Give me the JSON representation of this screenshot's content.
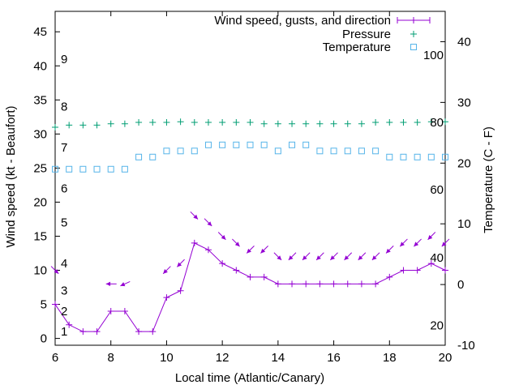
{
  "colors": {
    "wind": "#9400d3",
    "pressure": "#009e73",
    "temperature": "#56b4e9"
  },
  "chart_data": {
    "type": "line",
    "xlabel": "Local time (Atlantic/Canary)",
    "ylabel": "Wind speed (kt - Beaufort)",
    "y2label": "Temperature (C - F)",
    "xlim": [
      6,
      20
    ],
    "ylim": [
      -1,
      48
    ],
    "y2lim": [
      -10,
      45
    ],
    "xticks": [
      "6",
      "8",
      "10",
      "12",
      "14",
      "16",
      "18",
      "20"
    ],
    "yticks": [
      "0",
      "5",
      "10",
      "15",
      "20",
      "25",
      "30",
      "35",
      "40",
      "45"
    ],
    "y2ticks": [
      "-10",
      "0",
      "10",
      "20",
      "30",
      "40"
    ],
    "beaufort": [
      {
        "label": "1",
        "y": 1
      },
      {
        "label": "2",
        "y": 4
      },
      {
        "label": "3",
        "y": 7
      },
      {
        "label": "4",
        "y": 11
      },
      {
        "label": "5",
        "y": 17
      },
      {
        "label": "6",
        "y": 22
      },
      {
        "label": "7",
        "y": 28
      },
      {
        "label": "8",
        "y": 34
      },
      {
        "label": "9",
        "y": 41
      }
    ],
    "fahrenheit": [
      {
        "label": "20",
        "c": -6.7
      },
      {
        "label": "40",
        "c": 4.4
      },
      {
        "label": "60",
        "c": 15.6
      },
      {
        "label": "80",
        "c": 26.7
      },
      {
        "label": "100",
        "c": 37.8
      }
    ],
    "legend": [
      "Wind speed, gusts, and direction",
      "Pressure",
      "Temperature"
    ],
    "legend_position": "top-right",
    "series": [
      {
        "name": "Wind speed, gusts, and direction",
        "x": [
          6,
          6.5,
          7,
          7.5,
          8,
          8.5,
          9,
          9.5,
          10,
          10.5,
          11,
          11.5,
          12,
          12.5,
          13,
          13.5,
          14,
          14.5,
          15,
          15.5,
          16,
          16.5,
          17,
          17.5,
          18,
          18.5,
          19,
          19.5,
          20
        ],
        "values": [
          5,
          2,
          1,
          1,
          4,
          4,
          1,
          1,
          6,
          7,
          14,
          13,
          11,
          10,
          9,
          9,
          8,
          8,
          8,
          8,
          8,
          8,
          8,
          8,
          9,
          10,
          10,
          11,
          10
        ],
        "gusts": [
          {
            "x": 6,
            "y": 10,
            "dir": "NW"
          },
          {
            "x": 8,
            "y": 8,
            "dir": "E"
          },
          {
            "x": 8.5,
            "y": 8,
            "dir": "ENE"
          },
          {
            "x": 10,
            "y": 10,
            "dir": "NE"
          },
          {
            "x": 10.5,
            "y": 11,
            "dir": "NE"
          },
          {
            "x": 11,
            "y": 18,
            "dir": "NW"
          },
          {
            "x": 11.5,
            "y": 17,
            "dir": "NW"
          },
          {
            "x": 12,
            "y": 15,
            "dir": "NW"
          },
          {
            "x": 12.5,
            "y": 14,
            "dir": "NW"
          },
          {
            "x": 13,
            "y": 13,
            "dir": "NE"
          },
          {
            "x": 13.5,
            "y": 13,
            "dir": "NE"
          },
          {
            "x": 14,
            "y": 12,
            "dir": "NW"
          },
          {
            "x": 14.5,
            "y": 12,
            "dir": "NE"
          },
          {
            "x": 15,
            "y": 12,
            "dir": "NE"
          },
          {
            "x": 15.5,
            "y": 12,
            "dir": "NE"
          },
          {
            "x": 16,
            "y": 12,
            "dir": "NE"
          },
          {
            "x": 16.5,
            "y": 12,
            "dir": "NE"
          },
          {
            "x": 17,
            "y": 12,
            "dir": "NE"
          },
          {
            "x": 17.5,
            "y": 12,
            "dir": "NE"
          },
          {
            "x": 18,
            "y": 13,
            "dir": "NE"
          },
          {
            "x": 18.5,
            "y": 14,
            "dir": "NE"
          },
          {
            "x": 19,
            "y": 14,
            "dir": "NE"
          },
          {
            "x": 19.5,
            "y": 15,
            "dir": "NE"
          },
          {
            "x": 20,
            "y": 14,
            "dir": "NE"
          }
        ]
      },
      {
        "name": "Pressure",
        "x": [
          6,
          6.5,
          7,
          7.5,
          8,
          8.5,
          9,
          9.5,
          10,
          10.5,
          11,
          11.5,
          12,
          12.5,
          13,
          13.5,
          14,
          14.5,
          15,
          15.5,
          16,
          16.5,
          17,
          17.5,
          18,
          18.5,
          19,
          19.5,
          20
        ],
        "values": [
          31,
          31.3,
          31.3,
          31.3,
          31.5,
          31.5,
          31.7,
          31.7,
          31.7,
          31.8,
          31.7,
          31.7,
          31.7,
          31.7,
          31.7,
          31.5,
          31.5,
          31.5,
          31.5,
          31.5,
          31.5,
          31.5,
          31.5,
          31.7,
          31.7,
          31.7,
          31.7,
          31.8,
          31.8
        ]
      },
      {
        "name": "Temperature",
        "x": [
          6,
          6.5,
          7,
          7.5,
          8,
          8.5,
          9,
          9.5,
          10,
          10.5,
          11,
          11.5,
          12,
          12.5,
          13,
          13.5,
          14,
          14.5,
          15,
          15.5,
          16,
          16.5,
          17,
          17.5,
          18,
          18.5,
          19,
          19.5,
          20
        ],
        "values": [
          19,
          19,
          19,
          19,
          19,
          19,
          21,
          21,
          22,
          22,
          22,
          23,
          23,
          23,
          23,
          23,
          22,
          23,
          23,
          22,
          22,
          22,
          22,
          22,
          21,
          21,
          21,
          21,
          21
        ]
      }
    ]
  }
}
